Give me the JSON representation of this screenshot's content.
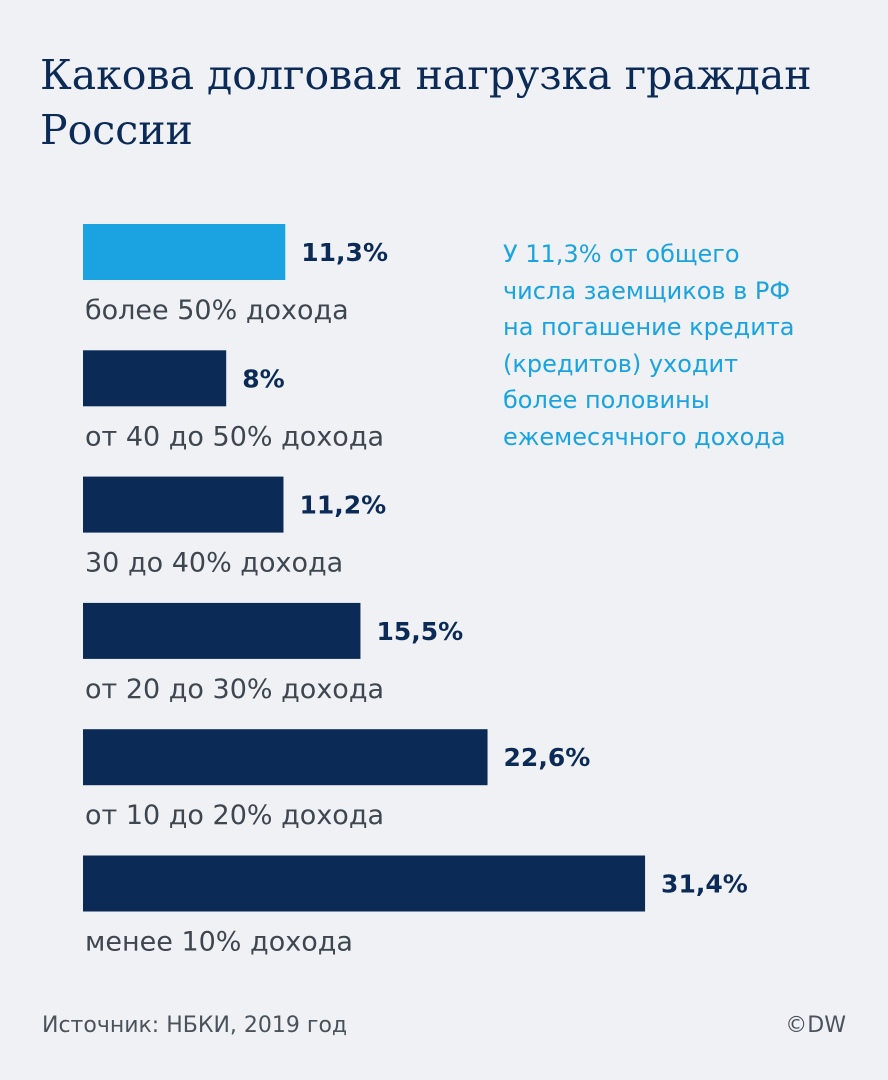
{
  "chart_data": {
    "type": "bar",
    "orientation": "horizontal",
    "title": "Какова долговая нагрузка граждан России",
    "categories": [
      "более 50% дохода",
      "от 40 до 50% дохода",
      "30 до 40% дохода",
      "от 20 до 30% дохода",
      "от 10 до 20% дохода",
      "менее 10% дохода"
    ],
    "values": [
      11.3,
      8,
      11.2,
      15.5,
      22.6,
      31.4
    ],
    "value_labels": [
      "11,3%",
      "8%",
      "11,2%",
      "15,5%",
      "22,6%",
      "31,4%"
    ],
    "bar_colors": [
      "#1aa3e0",
      "#0b2a55",
      "#0b2a55",
      "#0b2a55",
      "#0b2a55",
      "#0b2a55"
    ],
    "highlight_color": "#1aa3e0",
    "base_color": "#0b2a55",
    "grid": false,
    "legend": "none"
  },
  "annotation": "У 11,3% от общего\nчисла заемщиков в РФ\nна погашение кредита\n(кредитов) уходит\nболее половины\nежемесячного дохода",
  "footer": {
    "source": "Источник: НБКИ,  2019 год",
    "copyright": "©DW"
  },
  "colors": {
    "background": "#eff1f5",
    "title": "#0b2a55",
    "accent": "#1aa3e0",
    "text": "#3e4650"
  }
}
